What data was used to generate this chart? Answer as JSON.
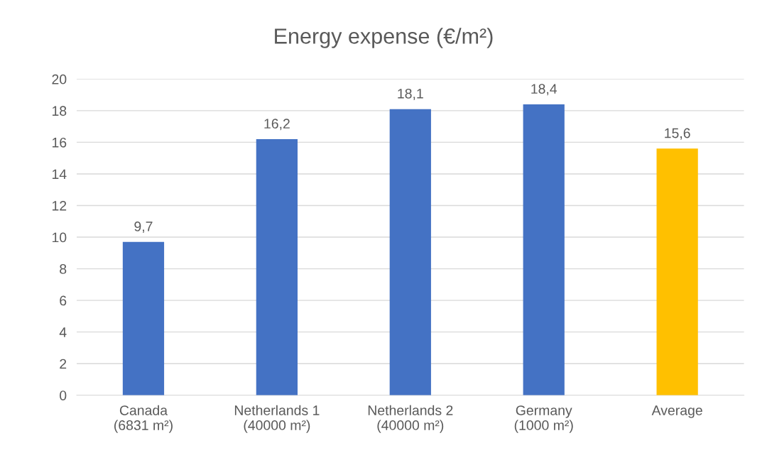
{
  "chart_data": {
    "type": "bar",
    "title": "Energy expense (€/m²)",
    "categories": [
      "Canada\n(6831 m²)",
      "Netherlands 1\n(40000 m²)",
      "Netherlands 2\n(40000 m²)",
      "Germany\n(1000 m²)",
      "Average"
    ],
    "values": [
      9.7,
      16.2,
      18.1,
      18.4,
      15.6
    ],
    "value_labels": [
      "9,7",
      "16,2",
      "18,1",
      "18,4",
      "15,6"
    ],
    "colors": [
      "#4472c4",
      "#4472c4",
      "#4472c4",
      "#4472c4",
      "#ffc000"
    ],
    "ylim": [
      0,
      20
    ],
    "yticks": [
      0,
      2,
      4,
      6,
      8,
      10,
      12,
      14,
      16,
      18,
      20
    ],
    "grid": "y"
  }
}
